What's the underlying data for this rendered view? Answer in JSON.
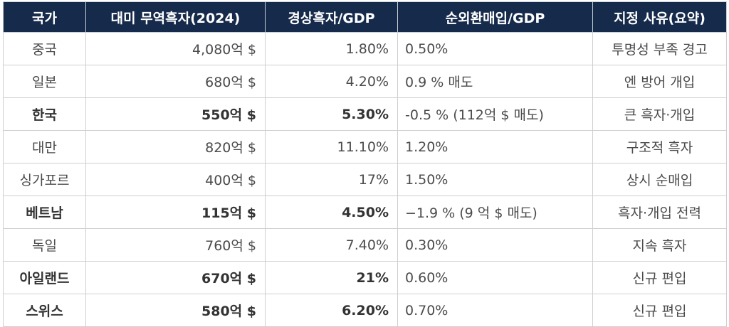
{
  "header": {
    "country": "국가",
    "surplus": "대미 무역흑자(2024)",
    "current_account": "경상흑자/GDP",
    "fx_net_buy": "순외환매입/GDP",
    "reason": "지정 사유(요약)"
  },
  "rows": [
    {
      "country": "중국",
      "surplus": "4,080억 $",
      "current_account": "1.80%",
      "fx_net_buy": "0.50%",
      "reason": "투명성 부족 경고",
      "emphasis": false
    },
    {
      "country": "일본",
      "surplus": "680억 $",
      "current_account": "4.20%",
      "fx_net_buy": "0.9 % 매도",
      "reason": "엔 방어 개입",
      "emphasis": false
    },
    {
      "country": "한국",
      "surplus": "550억 $",
      "current_account": "5.30%",
      "fx_net_buy": "-0.5 % (112억 $ 매도)",
      "reason": "큰 흑자·개입",
      "emphasis": true
    },
    {
      "country": "대만",
      "surplus": "820억 $",
      "current_account": "11.10%",
      "fx_net_buy": "1.20%",
      "reason": "구조적 흑자",
      "emphasis": false
    },
    {
      "country": "싱가포르",
      "surplus": "400억 $",
      "current_account": "17%",
      "fx_net_buy": "1.50%",
      "reason": "상시 순매입",
      "emphasis": false
    },
    {
      "country": "베트남",
      "surplus": "115억 $",
      "current_account": "4.50%",
      "fx_net_buy": "−1.9 % (9 억 $ 매도)",
      "reason": "흑자·개입 전력",
      "emphasis": true
    },
    {
      "country": "독일",
      "surplus": "760억 $",
      "current_account": "7.40%",
      "fx_net_buy": "0.30%",
      "reason": "지속 흑자",
      "emphasis": false
    },
    {
      "country": "아일랜드",
      "surplus": "670억 $",
      "current_account": "21%",
      "fx_net_buy": "0.60%",
      "reason": "신규 편입",
      "emphasis": true
    },
    {
      "country": "스위스",
      "surplus": "580억 $",
      "current_account": "6.20%",
      "fx_net_buy": "0.70%",
      "reason": "신규 편입",
      "emphasis": true
    }
  ]
}
